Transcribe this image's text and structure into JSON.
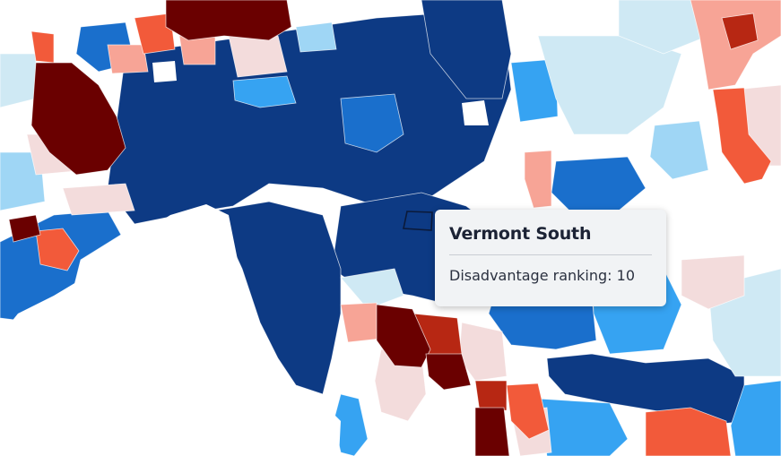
{
  "tooltip": {
    "title": "Vermont South",
    "metric_label": "Disadvantage ranking:",
    "metric_value": "10"
  },
  "colors": {
    "navy": "#0d3a84",
    "blue": "#1a6fcc",
    "mid_blue": "#36a3f2",
    "light_blue": "#9fd6f5",
    "pale_blue": "#cfe9f4",
    "pale_pink": "#f3dcdc",
    "salmon": "#f7a496",
    "orange_red": "#f25a3a",
    "red": "#b72713",
    "dark_red": "#6a0000",
    "water": "#ffffff"
  }
}
